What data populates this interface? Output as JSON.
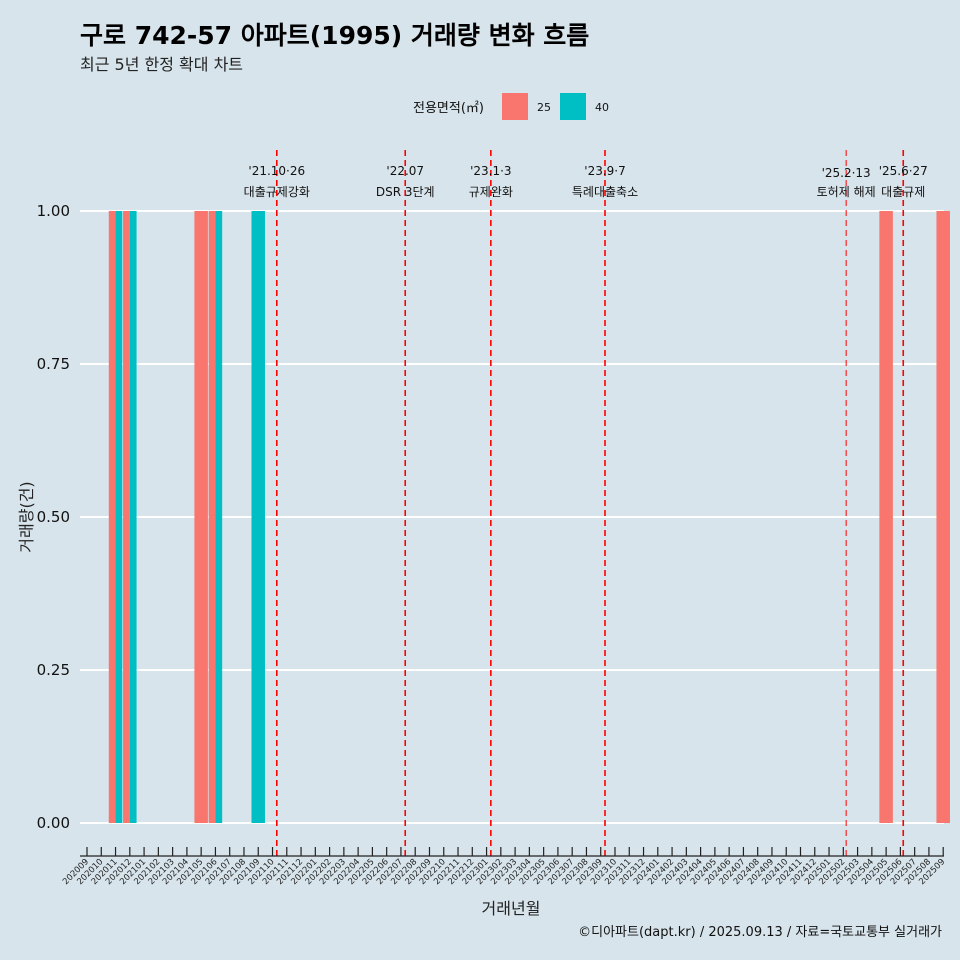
{
  "colors": {
    "background": "#d7e4eb",
    "grid": "#ffffff",
    "series_25": "#f8766d",
    "series_40": "#00bfc4",
    "event_line": "#ff0000"
  },
  "chart_data": {
    "type": "bar",
    "title": "구로 742-57 아파트(1995) 거래량 변화 흐름",
    "subtitle": "최근 5년 한정 확대 차트",
    "xlabel": "거래년월",
    "ylabel": "거래량(건)",
    "ylim": [
      0,
      1
    ],
    "yticks": [
      "0.00",
      "0.25",
      "0.50",
      "0.75",
      "1.00"
    ],
    "ytick_values": [
      0,
      0.25,
      0.5,
      0.75,
      1.0
    ],
    "legend": {
      "title": "전용면적(㎡)",
      "placement": "top-center",
      "entries": [
        "25",
        "40"
      ]
    },
    "categories": [
      "202009",
      "202010",
      "202011",
      "202012",
      "202101",
      "202102",
      "202103",
      "202104",
      "202105",
      "202106",
      "202107",
      "202108",
      "202109",
      "202110",
      "202111",
      "202112",
      "202201",
      "202202",
      "202203",
      "202204",
      "202205",
      "202206",
      "202207",
      "202208",
      "202209",
      "202210",
      "202211",
      "202212",
      "202301",
      "202302",
      "202303",
      "202304",
      "202305",
      "202306",
      "202307",
      "202308",
      "202309",
      "202310",
      "202311",
      "202312",
      "202401",
      "202402",
      "202403",
      "202404",
      "202405",
      "202406",
      "202407",
      "202408",
      "202409",
      "202410",
      "202411",
      "202412",
      "202501",
      "202502",
      "202503",
      "202504",
      "202505",
      "202506",
      "202507",
      "202508",
      "202509"
    ],
    "series": [
      {
        "name": "25",
        "bars": [
          {
            "month": "202011",
            "value": 1
          },
          {
            "month": "202012",
            "value": 1
          },
          {
            "month": "202105",
            "value": 1
          },
          {
            "month": "202106",
            "value": 1
          },
          {
            "month": "202505",
            "value": 1
          },
          {
            "month": "202509",
            "value": 1
          }
        ]
      },
      {
        "name": "40",
        "bars": [
          {
            "month": "202011",
            "value": 1
          },
          {
            "month": "202012",
            "value": 1
          },
          {
            "month": "202106",
            "value": 1
          },
          {
            "month": "202109",
            "value": 1
          }
        ]
      }
    ],
    "events": [
      {
        "month_pos": 13.3,
        "date": "'21.10·26",
        "label": "대출규제강화",
        "style": "bold"
      },
      {
        "month_pos": 22.3,
        "date": "'22.07",
        "label": "DSR 3단계",
        "style": "bold"
      },
      {
        "month_pos": 28.3,
        "date": "'23.1·3",
        "label": "규제완화",
        "style": "bold"
      },
      {
        "month_pos": 36.3,
        "date": "'23.9·7",
        "label": "특례대출축소",
        "style": "bold"
      },
      {
        "month_pos": 53.2,
        "date": "'25.2·13",
        "label": "토허제 해제",
        "style": "thin"
      },
      {
        "month_pos": 57.2,
        "date": "'25.6·27",
        "label": "대출규제",
        "style": "bold"
      }
    ],
    "caption": "©디아파트(dapt.kr) / 2025.09.13 / 자료=국토교통부 실거래가"
  }
}
